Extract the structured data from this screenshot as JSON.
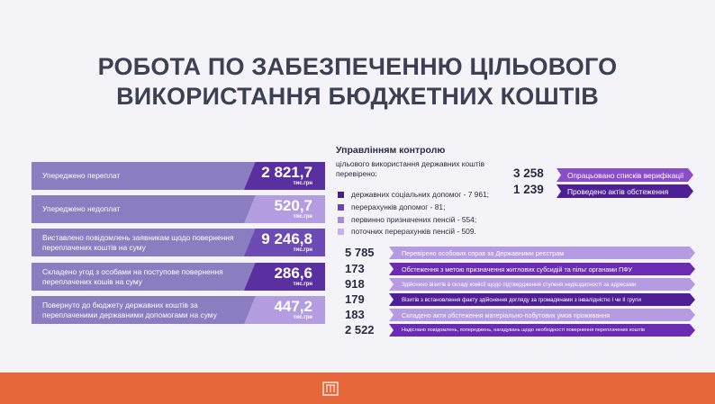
{
  "title": {
    "line1": "РОБОТА ПО ЗАБЕЗПЕЧЕННЮ ЦІЛЬОВОГО",
    "line2": "ВИКОРИСТАННЯ БЮДЖЕТНИХ КОШТІВ"
  },
  "cards": [
    {
      "label": "Упереджено переплат",
      "value": "2 821,7",
      "unit": "тис.грн"
    },
    {
      "label": "Упереджено недоплат",
      "value": "520,7",
      "unit": "тис.грн"
    },
    {
      "label": "Виставлено повідомлень заявникам щодо повернення переплачених коштів на суму",
      "value": "9 246,8",
      "unit": "тис.грн"
    },
    {
      "label": "Складено угод з особами на поступове повернення переплачених кошів на суму",
      "value": "286,6",
      "unit": "тис.грн"
    },
    {
      "label": "Повернуто до бюджету державних коштів за переплаченими державними допомогами на суму",
      "value": "447,2",
      "unit": "тис.грн"
    }
  ],
  "control": {
    "heading": "Управлінням контролю",
    "sub": "цільового використання державних коштів перевірено:",
    "items": [
      {
        "text": "державних соціальних допомог - 7 961;",
        "color": "#4b1d86"
      },
      {
        "text": "перерахунків допомог - 81;",
        "color": "#6f41b6"
      },
      {
        "text": "первинно призначених пенсій - 554;",
        "color": "#a98ad8"
      },
      {
        "text": "поточних перерахунків пенсій - 509.",
        "color": "#c6b2ea"
      }
    ]
  },
  "top_stats": [
    {
      "num": "3 258",
      "text": "Опрацьовано списків верифікації"
    },
    {
      "num": "1 239",
      "text": "Проведено актів обстеження"
    }
  ],
  "bottom_stats": [
    {
      "num": "5 785",
      "text": "Перевірено особових справ за Державними реєстрам"
    },
    {
      "num": "173",
      "text": "Обстеження з метою призначення житлових субсидій та пільг органами ПФУ"
    },
    {
      "num": "918",
      "text": "Здійснено візитів в складі комісії щодо підтвердження ступеня недієздатності за адресами"
    },
    {
      "num": "179",
      "text": "Візитів з встановлення факту здійснення догляду за громадянами з інвалідністю І чи ІІ групи"
    },
    {
      "num": "183",
      "text": "Складено акти обстеження матеріально-побутових умов проживання"
    },
    {
      "num": "2 522",
      "text": "Надіслано повідомлень, попереджень, нагадувань щодо необхідності повернення переплачених коштів"
    }
  ],
  "colors": {
    "accent_dark": "#5a2fa0",
    "accent_light": "#b39de0",
    "footer": "#e5673a"
  }
}
